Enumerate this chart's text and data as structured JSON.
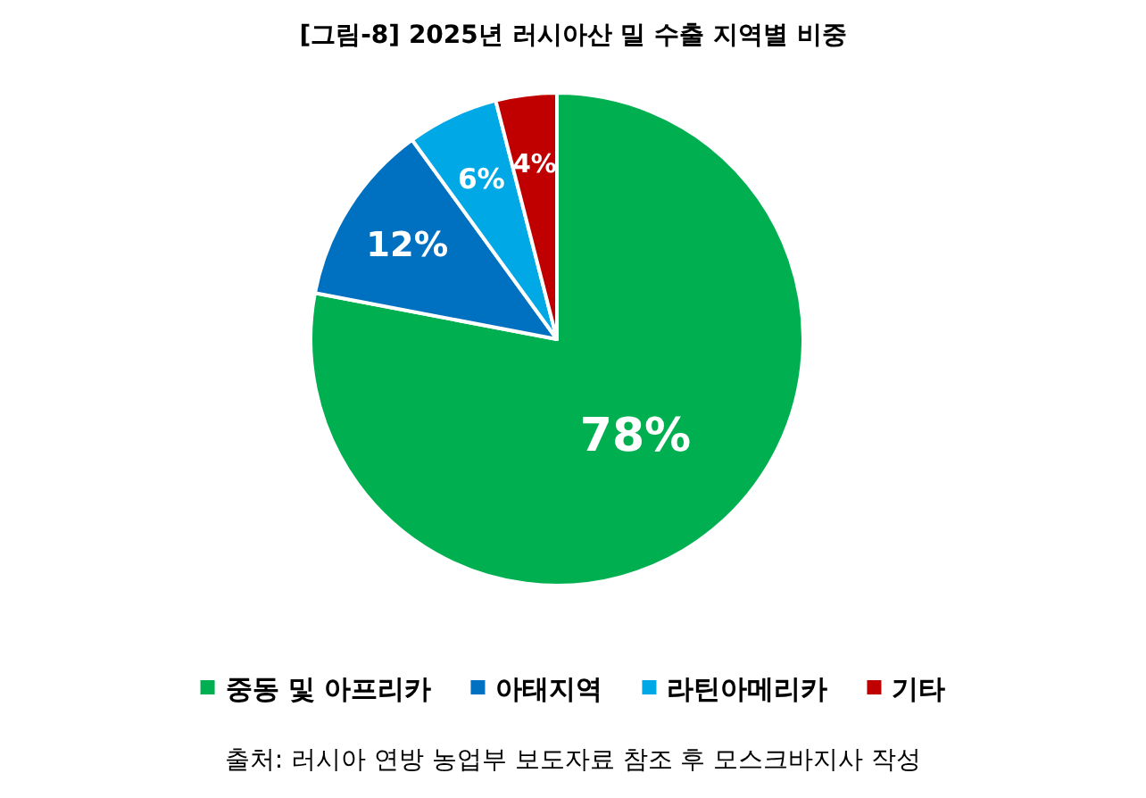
{
  "chart_data": {
    "type": "pie",
    "title": "[그림-8] 2025년 러시아산 밀 수출 지역별 비중",
    "categories": [
      "중동 및 아프리카",
      "아태지역",
      "라틴아메리카",
      "기타"
    ],
    "values": [
      78,
      12,
      6,
      4
    ],
    "colors": [
      "#00b050",
      "#0070c0",
      "#00a8e6",
      "#c00000"
    ],
    "value_labels": [
      "78%",
      "12%",
      "6%",
      "4%"
    ],
    "legend": "bottom",
    "annotations": [
      "출처: 러시아 연방 농업부 보도자료 참조 후 모스크바지사 작성"
    ]
  }
}
